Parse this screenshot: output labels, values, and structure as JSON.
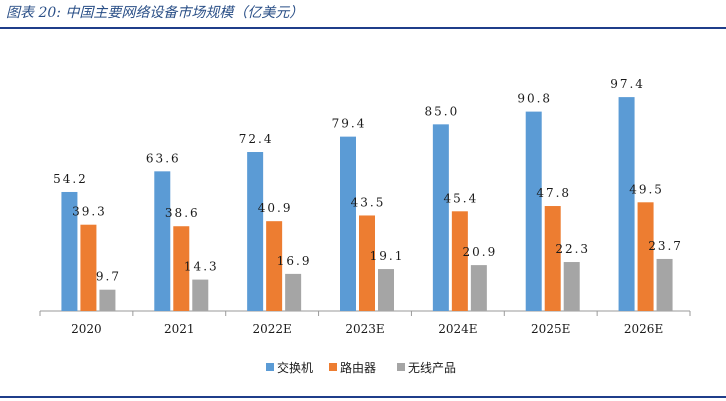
{
  "figure_title": "图表 20:  中国主要网络设备市场规模（亿美元）",
  "chart_data": {
    "type": "bar",
    "categories": [
      "2020",
      "2021",
      "2022E",
      "2023E",
      "2024E",
      "2025E",
      "2026E"
    ],
    "series": [
      {
        "name": "交换机",
        "color": "#5b9bd5",
        "values": [
          54.2,
          63.6,
          72.4,
          79.4,
          85.0,
          90.8,
          97.4
        ]
      },
      {
        "name": "路由器",
        "color": "#ed7d31",
        "values": [
          39.3,
          38.6,
          40.9,
          43.5,
          45.4,
          47.8,
          49.5
        ]
      },
      {
        "name": "无线产品",
        "color": "#a5a5a5",
        "values": [
          9.7,
          14.3,
          16.9,
          19.1,
          20.9,
          22.3,
          23.7
        ]
      }
    ],
    "value_labels": [
      [
        "54.2",
        "63.6",
        "72.4",
        "79.4",
        "85.0",
        "90.8",
        "97.4"
      ],
      [
        "39.3",
        "38.6",
        "40.9",
        "43.5",
        "45.4",
        "47.8",
        "49.5"
      ],
      [
        "9.7",
        "14.3",
        "16.9",
        "19.1",
        "20.9",
        "22.3",
        "23.7"
      ]
    ],
    "legend_position": "bottom",
    "grid": false
  }
}
